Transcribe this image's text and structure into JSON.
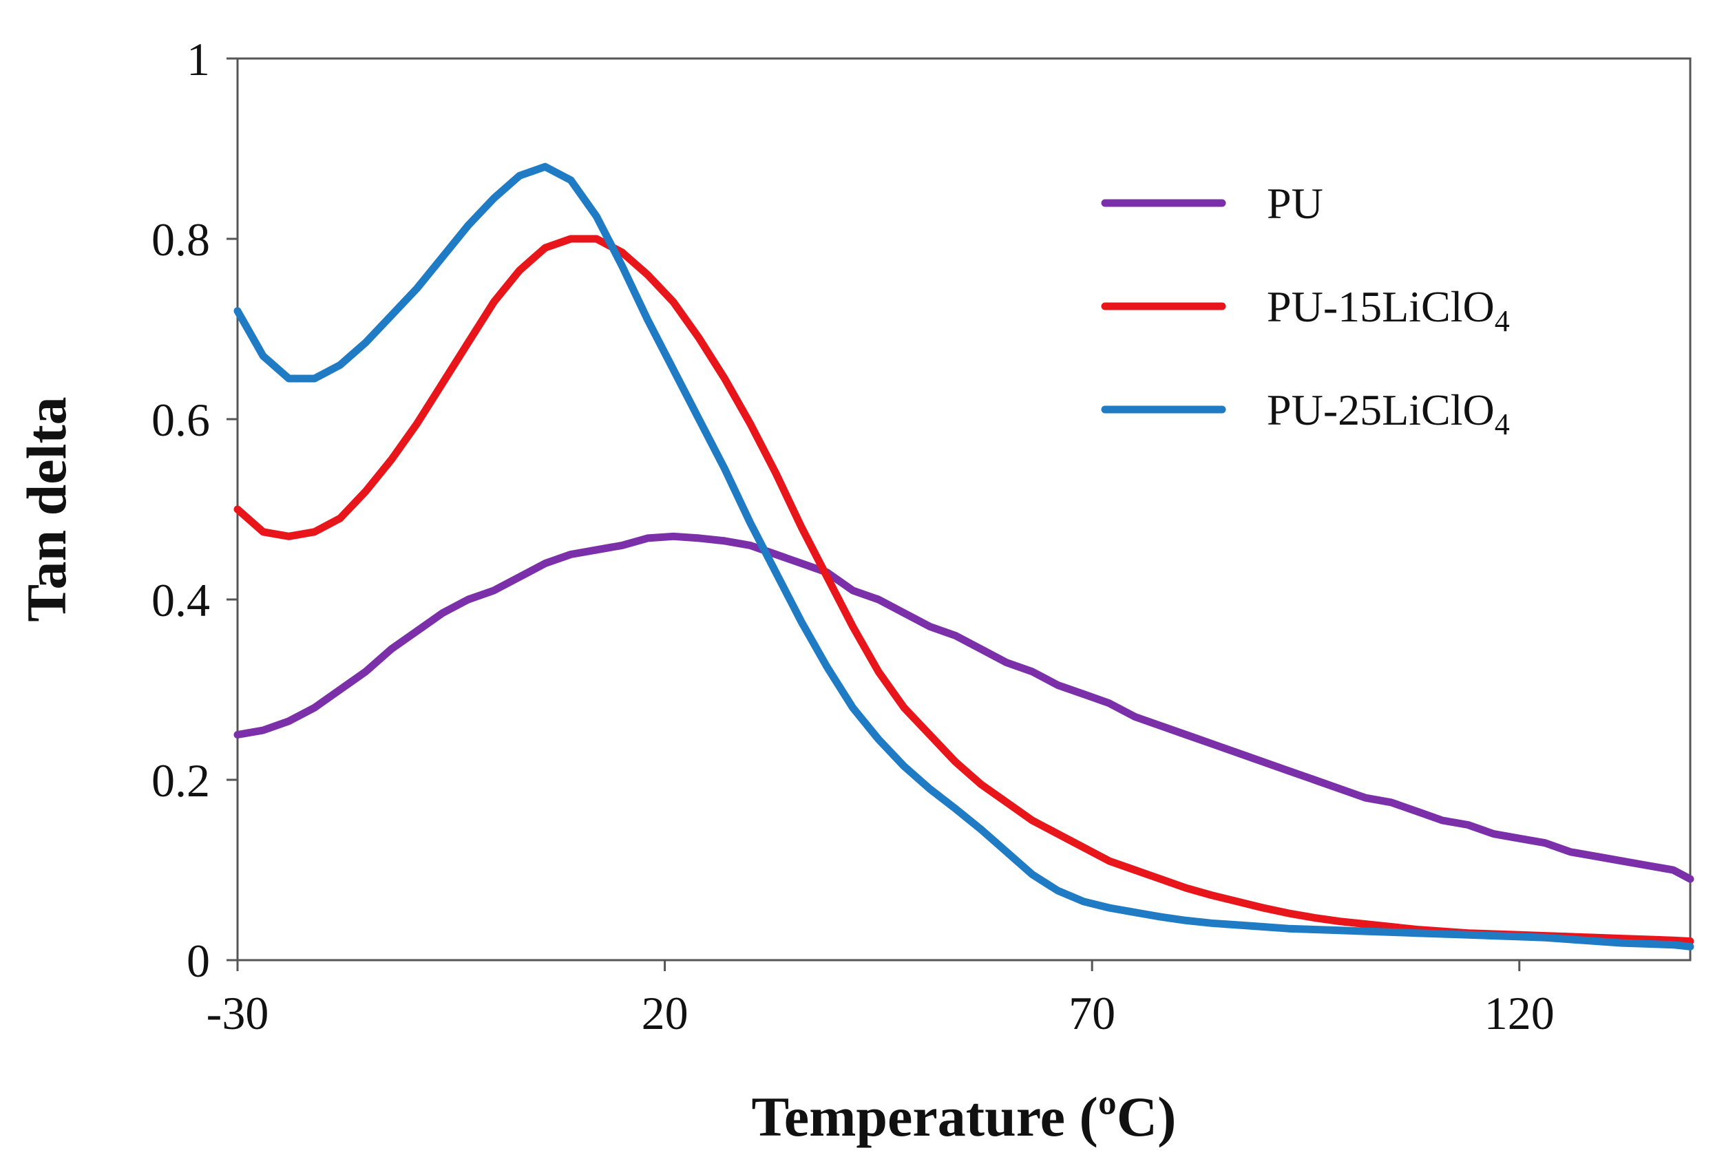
{
  "chart_data": {
    "type": "line",
    "title": "",
    "xlabel": "Temperature (ºC)",
    "ylabel": "Tan delta",
    "xlim": [
      -30,
      140
    ],
    "ylim": [
      0,
      1
    ],
    "x_ticks": [
      -30,
      20,
      70,
      120
    ],
    "x_tick_labels": [
      "-30",
      "20",
      "70",
      "120"
    ],
    "y_ticks": [
      0,
      0.2,
      0.4,
      0.6,
      0.8,
      1
    ],
    "y_tick_labels": [
      "0",
      "0.2",
      "0.4",
      "0.6",
      "0.8",
      "1"
    ],
    "grid": false,
    "legend_position": "top-right",
    "series": [
      {
        "name": "PU",
        "legend_base": "PU",
        "legend_sub": "",
        "color": "#7b2fa8",
        "x": [
          -30,
          -27,
          -24,
          -21,
          -18,
          -15,
          -12,
          -9,
          -6,
          -3,
          0,
          3,
          6,
          9,
          12,
          15,
          18,
          21,
          24,
          27,
          30,
          33,
          36,
          39,
          42,
          45,
          48,
          51,
          54,
          57,
          60,
          63,
          66,
          69,
          72,
          75,
          78,
          81,
          84,
          87,
          90,
          93,
          96,
          99,
          102,
          105,
          108,
          111,
          114,
          117,
          120,
          123,
          126,
          129,
          132,
          135,
          138,
          140
        ],
        "y": [
          0.25,
          0.255,
          0.265,
          0.28,
          0.3,
          0.32,
          0.345,
          0.365,
          0.385,
          0.4,
          0.41,
          0.425,
          0.44,
          0.45,
          0.455,
          0.46,
          0.468,
          0.47,
          0.468,
          0.465,
          0.46,
          0.45,
          0.44,
          0.43,
          0.41,
          0.4,
          0.385,
          0.37,
          0.36,
          0.345,
          0.33,
          0.32,
          0.305,
          0.295,
          0.285,
          0.27,
          0.26,
          0.25,
          0.24,
          0.23,
          0.22,
          0.21,
          0.2,
          0.19,
          0.18,
          0.175,
          0.165,
          0.155,
          0.15,
          0.14,
          0.135,
          0.13,
          0.12,
          0.115,
          0.11,
          0.105,
          0.1,
          0.09
        ]
      },
      {
        "name": "PU-15LiClO4",
        "legend_base": "PU-15LiClO",
        "legend_sub": "4",
        "color": "#e8151b",
        "x": [
          -30,
          -27,
          -24,
          -21,
          -18,
          -15,
          -12,
          -9,
          -6,
          -3,
          0,
          3,
          6,
          9,
          12,
          15,
          18,
          21,
          24,
          27,
          30,
          33,
          36,
          39,
          42,
          45,
          48,
          51,
          54,
          57,
          60,
          63,
          66,
          69,
          72,
          75,
          78,
          81,
          84,
          87,
          90,
          93,
          96,
          99,
          102,
          105,
          108,
          111,
          114,
          117,
          120,
          123,
          126,
          129,
          132,
          135,
          138,
          140
        ],
        "y": [
          0.5,
          0.475,
          0.47,
          0.475,
          0.49,
          0.52,
          0.555,
          0.595,
          0.64,
          0.685,
          0.73,
          0.765,
          0.79,
          0.8,
          0.8,
          0.785,
          0.76,
          0.73,
          0.69,
          0.645,
          0.595,
          0.54,
          0.48,
          0.425,
          0.37,
          0.32,
          0.28,
          0.25,
          0.22,
          0.195,
          0.175,
          0.155,
          0.14,
          0.125,
          0.11,
          0.1,
          0.09,
          0.08,
          0.072,
          0.065,
          0.058,
          0.052,
          0.047,
          0.043,
          0.04,
          0.037,
          0.034,
          0.032,
          0.03,
          0.029,
          0.028,
          0.027,
          0.026,
          0.025,
          0.024,
          0.023,
          0.022,
          0.021
        ]
      },
      {
        "name": "PU-25LiClO4",
        "legend_base": "PU-25LiClO",
        "legend_sub": "4",
        "color": "#1f7bc4",
        "x": [
          -30,
          -27,
          -24,
          -21,
          -18,
          -15,
          -12,
          -9,
          -6,
          -3,
          0,
          3,
          6,
          9,
          12,
          15,
          18,
          21,
          24,
          27,
          30,
          33,
          36,
          39,
          42,
          45,
          48,
          51,
          54,
          57,
          60,
          63,
          66,
          69,
          72,
          75,
          78,
          81,
          84,
          87,
          90,
          93,
          96,
          99,
          102,
          105,
          108,
          111,
          114,
          117,
          120,
          123,
          126,
          129,
          132,
          135,
          138,
          140
        ],
        "y": [
          0.72,
          0.67,
          0.645,
          0.645,
          0.66,
          0.685,
          0.715,
          0.745,
          0.78,
          0.815,
          0.845,
          0.87,
          0.88,
          0.865,
          0.825,
          0.77,
          0.71,
          0.655,
          0.6,
          0.545,
          0.485,
          0.43,
          0.375,
          0.325,
          0.28,
          0.245,
          0.215,
          0.19,
          0.168,
          0.145,
          0.12,
          0.095,
          0.077,
          0.065,
          0.058,
          0.053,
          0.048,
          0.044,
          0.041,
          0.039,
          0.037,
          0.035,
          0.034,
          0.033,
          0.032,
          0.031,
          0.03,
          0.029,
          0.028,
          0.027,
          0.026,
          0.025,
          0.023,
          0.021,
          0.019,
          0.018,
          0.017,
          0.015
        ]
      }
    ]
  }
}
